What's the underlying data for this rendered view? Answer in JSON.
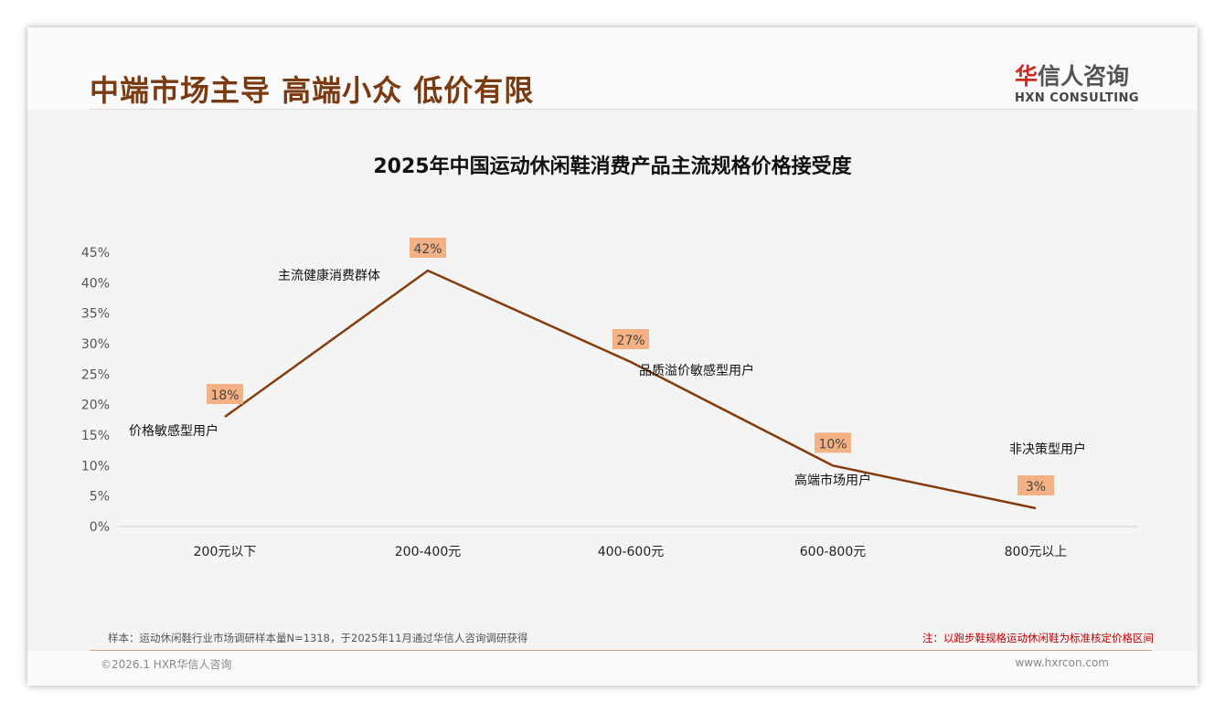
{
  "header": {
    "title": "中端市场主导 高端小众 低价有限",
    "logo_cn_accent": "华",
    "logo_cn": "信人咨询",
    "logo_en": "HXN CONSULTING"
  },
  "watermark": {
    "cn": "华信人咨询",
    "en": "HXN CONSULTING"
  },
  "chart_data": {
    "type": "line",
    "title": "2025年中国运动休闲鞋消费产品主流规格价格接受度",
    "categories": [
      "200元以下",
      "200-400元",
      "400-600元",
      "600-800元",
      "800元以上"
    ],
    "values": [
      18,
      42,
      27,
      10,
      3
    ],
    "data_labels": [
      "18%",
      "42%",
      "27%",
      "10%",
      "3%"
    ],
    "annotations": [
      "价格敏感型用户",
      "主流健康消费群体",
      "品质溢价敏感型用户",
      "高端市场用户",
      "非决策型用户"
    ],
    "yticks": [
      "0%",
      "5%",
      "10%",
      "15%",
      "20%",
      "25%",
      "30%",
      "35%",
      "40%",
      "45%"
    ],
    "ylim": [
      0,
      45
    ],
    "grid": false,
    "legend": "none",
    "colors": {
      "line": "#843c0c",
      "label_bg": "#f4b183"
    }
  },
  "footer": {
    "sample": "样本：运动休闲鞋行业市场调研样本量N=1318，于2025年11月通过华信人咨询调研获得",
    "note": "注：以跑步鞋规格运动休闲鞋为标准核定价格区间",
    "copyright": "©2026.1 HXR华信人咨询",
    "website": "www.hxrcon.com"
  }
}
